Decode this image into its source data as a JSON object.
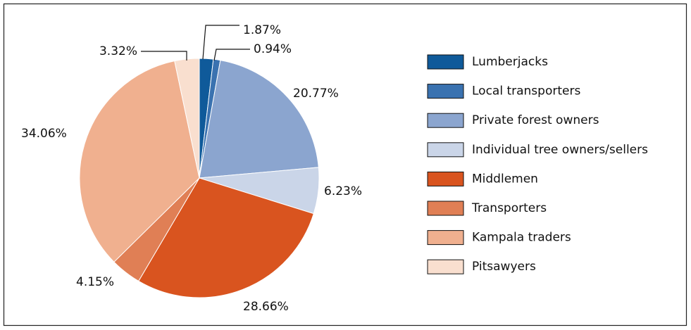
{
  "chart_data": {
    "type": "pie",
    "categories": [
      "Lumberjacks",
      "Local transporters",
      "Private forest owners",
      "Individual tree owners/sellers",
      "Middlemen",
      "Transporters",
      "Kampala traders",
      "Pitsawyers"
    ],
    "values": [
      1.87,
      0.94,
      20.77,
      6.23,
      28.66,
      4.15,
      34.06,
      3.32
    ],
    "value_labels": [
      "1.87%",
      "0.94%",
      "20.77%",
      "6.23%",
      "28.66%",
      "4.15%",
      "34.06%",
      "3.32%"
    ],
    "colors": [
      "#0f5a9a",
      "#3a72b0",
      "#8ba5cf",
      "#cad5e8",
      "#d9541f",
      "#e07f55",
      "#f0b08f",
      "#f9dfcf"
    ],
    "legend": "right"
  }
}
